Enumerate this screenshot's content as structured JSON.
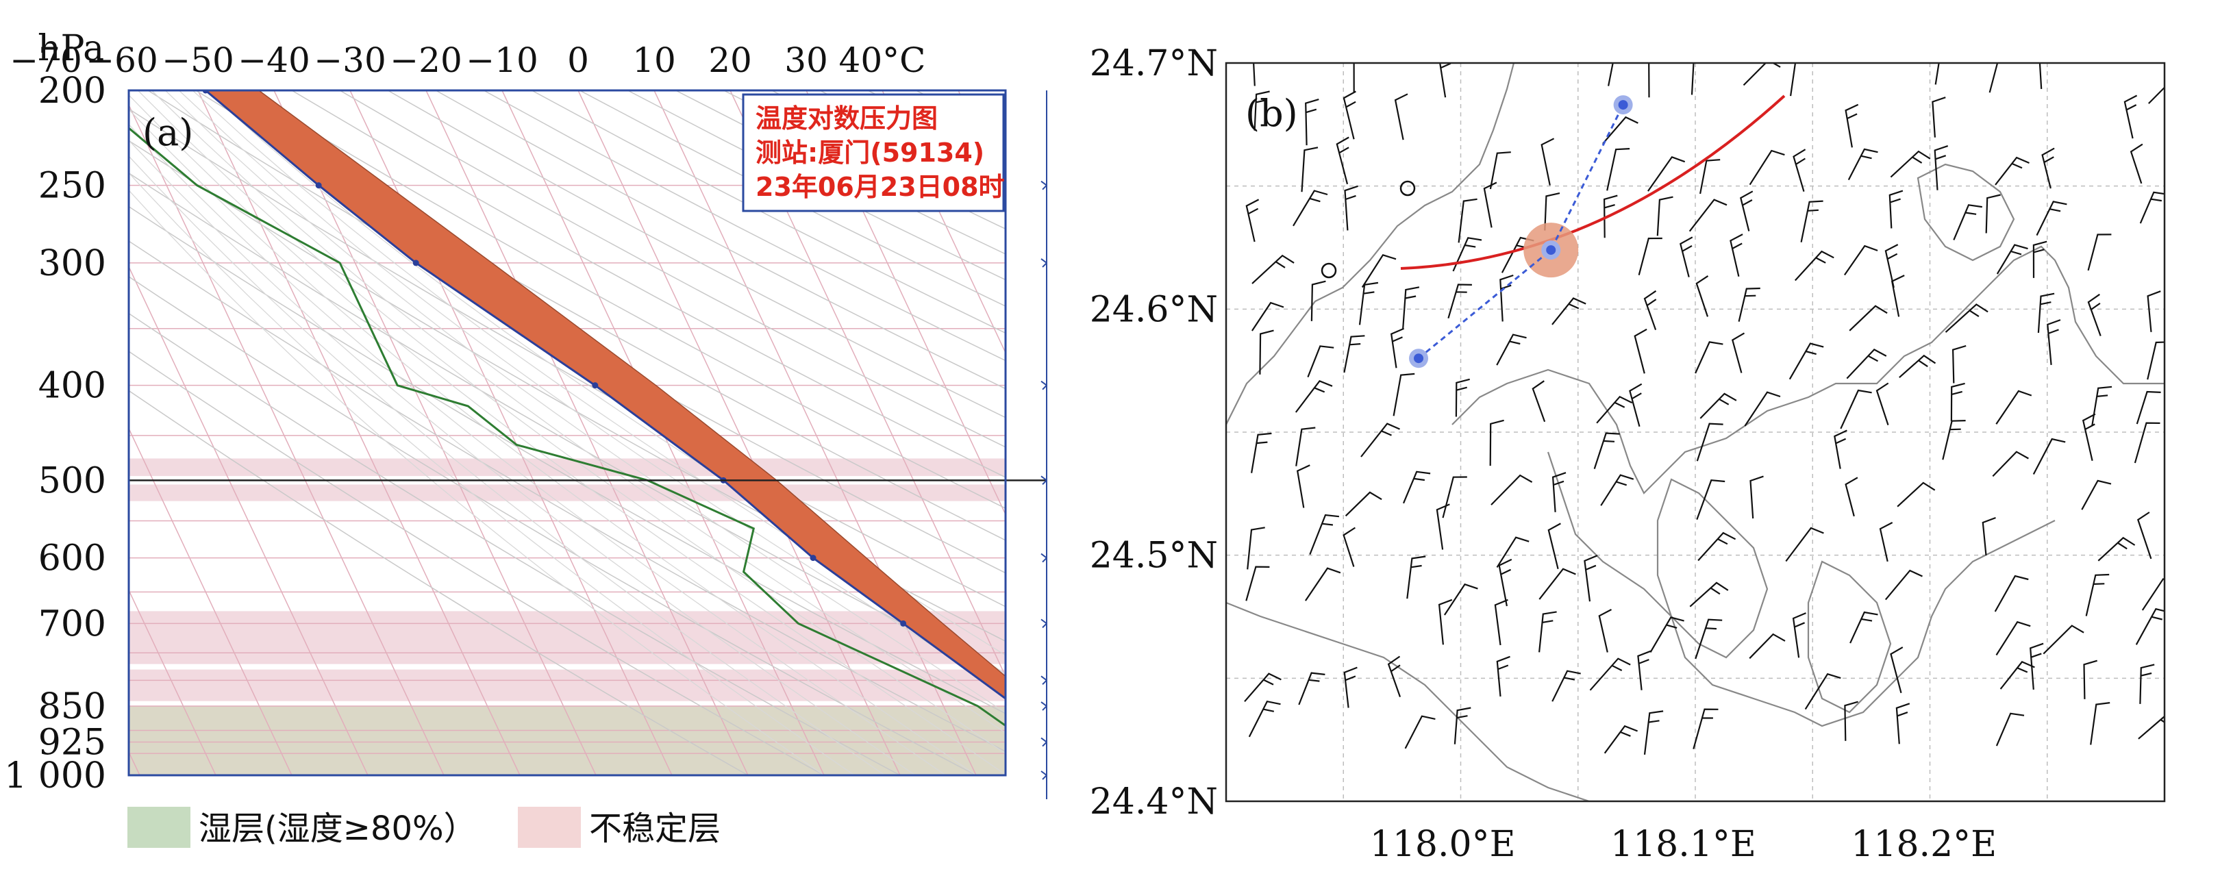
{
  "chart_data": [
    {
      "type": "skew-t log-p",
      "panel_label": "(a)",
      "title_lines": [
        "温度对数压力图",
        "测站:厦门(59134)",
        "23年06月23日08时"
      ],
      "pressure_unit": "hPa",
      "pressure_ticks": [
        {
          "p": 200,
          "label": "200"
        },
        {
          "p": 250,
          "label": "250"
        },
        {
          "p": 300,
          "label": "300"
        },
        {
          "p": 400,
          "label": "400"
        },
        {
          "p": 500,
          "label": "500"
        },
        {
          "p": 600,
          "label": "600"
        },
        {
          "p": 700,
          "label": "700"
        },
        {
          "p": 850,
          "label": "850"
        },
        {
          "p": 925,
          "label": "925"
        },
        {
          "p": 1000,
          "label": "1 000"
        }
      ],
      "temperature_ticks": [
        {
          "t": -70,
          "label": "−70"
        },
        {
          "t": -60,
          "label": "−60"
        },
        {
          "t": -50,
          "label": "−50"
        },
        {
          "t": -40,
          "label": "−40"
        },
        {
          "t": -30,
          "label": "−30"
        },
        {
          "t": -20,
          "label": "−20"
        },
        {
          "t": -10,
          "label": "−10"
        },
        {
          "t": 0,
          "label": "0"
        },
        {
          "t": 10,
          "label": "10"
        },
        {
          "t": 20,
          "label": "20"
        },
        {
          "t": 30,
          "label": "30"
        },
        {
          "t": 40,
          "label": "40°C"
        }
      ],
      "ylim": [
        200,
        1000
      ],
      "xlim": [
        -70,
        40
      ],
      "temperature_profile": [
        {
          "p": 1000,
          "t": 26.5
        },
        {
          "p": 925,
          "t": 22.8
        },
        {
          "p": 850,
          "t": 19.5
        },
        {
          "p": 700,
          "t": 9.8
        },
        {
          "p": 600,
          "t": 2.0
        },
        {
          "p": 500,
          "t": -5.0
        },
        {
          "p": 400,
          "t": -16.0
        },
        {
          "p": 300,
          "t": -32.0
        },
        {
          "p": 250,
          "t": -40.0
        },
        {
          "p": 200,
          "t": -49.0
        }
      ],
      "parcel_profile": [
        {
          "p": 1000,
          "t": 27.0
        },
        {
          "p": 925,
          "t": 24.5
        },
        {
          "p": 850,
          "t": 22.8
        },
        {
          "p": 700,
          "t": 15.0
        },
        {
          "p": 600,
          "t": 9.0
        },
        {
          "p": 500,
          "t": 2.0
        },
        {
          "p": 400,
          "t": -8.0
        },
        {
          "p": 300,
          "t": -22.0
        },
        {
          "p": 250,
          "t": -31.0
        },
        {
          "p": 200,
          "t": -42.0
        }
      ],
      "dewpoint_profile": [
        {
          "p": 1000,
          "t": 25.0
        },
        {
          "p": 925,
          "t": 19.0
        },
        {
          "p": 850,
          "t": 14.5
        },
        {
          "p": 700,
          "t": -4.0
        },
        {
          "p": 620,
          "t": -8.0
        },
        {
          "p": 560,
          "t": -4.0
        },
        {
          "p": 500,
          "t": -15.0
        },
        {
          "p": 460,
          "t": -30.0
        },
        {
          "p": 420,
          "t": -34.0
        },
        {
          "p": 400,
          "t": -42.0
        },
        {
          "p": 300,
          "t": -42.0
        },
        {
          "p": 250,
          "t": -56.0
        },
        {
          "p": 200,
          "t": -65.0
        }
      ],
      "moist_layers": [
        {
          "p_top": 850,
          "p_bottom": 1000
        }
      ],
      "unstable_layers": [
        {
          "p_top": 475,
          "p_bottom": 495
        },
        {
          "p_top": 505,
          "p_bottom": 525
        },
        {
          "p_top": 680,
          "p_bottom": 770
        },
        {
          "p_top": 780,
          "p_bottom": 840
        }
      ],
      "reference_line_p": 500,
      "legend": [
        {
          "label": "湿层(湿度≥80%）",
          "color": "#c7dcc0"
        },
        {
          "label": "不稳定层",
          "color": "#f3d6d6"
        }
      ],
      "colors": {
        "cape": "#d96a45",
        "cape_edge": "#2b3f9a",
        "dewpoint": "#2e7d32",
        "grid": "#e2aebb",
        "border": "#2b4aa0",
        "title": "#e0261c"
      }
    },
    {
      "type": "map",
      "panel_label": "(b)",
      "lat_ticks": [
        "24.7°N",
        "24.6°N",
        "24.5°N",
        "24.4°N"
      ],
      "lon_ticks": [
        "118.0°E",
        "118.1°E",
        "118.2°E"
      ],
      "lat_range": [
        24.4,
        24.7
      ],
      "lon_range": [
        117.91,
        118.3
      ],
      "track_points": [
        {
          "lon": 117.99,
          "lat": 24.58
        },
        {
          "lon": 118.045,
          "lat": 24.624
        },
        {
          "lon": 118.075,
          "lat": 24.683
        }
      ],
      "highlight_point": {
        "lon": 118.045,
        "lat": 24.624
      },
      "colors": {
        "track": "#3b5bd6",
        "highlight": "#e59a7c",
        "front": "#d92020",
        "coast": "#888888",
        "barb": "#111111",
        "grid": "#bdbdbd"
      }
    }
  ]
}
